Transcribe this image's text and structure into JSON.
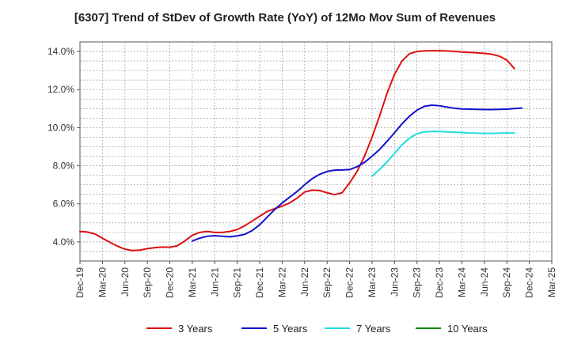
{
  "chart_data": {
    "type": "line",
    "title": "[6307]  Trend of StDev of Growth Rate (YoY) of 12Mo Mov Sum of Revenues",
    "xlabel": "",
    "ylabel": "",
    "ylim": [
      3.0,
      14.5
    ],
    "yticks": [
      4.0,
      6.0,
      8.0,
      10.0,
      12.0,
      14.0
    ],
    "ytick_labels": [
      "4.0%",
      "6.0%",
      "8.0%",
      "10.0%",
      "12.0%",
      "14.0%"
    ],
    "x_start": "2019-12",
    "x_tick_labels": [
      "Dec-19",
      "Mar-20",
      "Jun-20",
      "Sep-20",
      "Dec-20",
      "Mar-21",
      "Jun-21",
      "Sep-21",
      "Dec-21",
      "Mar-22",
      "Jun-22",
      "Sep-22",
      "Dec-22",
      "Mar-23",
      "Jun-23",
      "Sep-23",
      "Dec-23",
      "Mar-24",
      "Jun-24",
      "Sep-24",
      "Dec-24",
      "Mar-25"
    ],
    "grid": true,
    "legend_position": "bottom",
    "series": [
      {
        "name": "3 Years",
        "color": "#dd1111",
        "start_index": 0,
        "values": [
          4.55,
          4.52,
          4.42,
          4.2,
          3.98,
          3.78,
          3.62,
          3.55,
          3.57,
          3.65,
          3.7,
          3.73,
          3.72,
          3.8,
          4.05,
          4.35,
          4.5,
          4.55,
          4.5,
          4.5,
          4.55,
          4.65,
          4.85,
          5.1,
          5.35,
          5.6,
          5.75,
          5.88,
          6.05,
          6.3,
          6.62,
          6.72,
          6.7,
          6.58,
          6.48,
          6.58,
          7.1,
          7.7,
          8.5,
          9.5,
          10.6,
          11.8,
          12.8,
          13.5,
          13.88,
          14.0,
          14.03,
          14.04,
          14.04,
          14.03,
          14.0,
          13.97,
          13.95,
          13.93,
          13.9,
          13.85,
          13.75,
          13.55,
          13.1
        ]
      },
      {
        "name": "5 Years",
        "color": "#1111cc",
        "start_index": 15,
        "values": [
          4.05,
          4.2,
          4.3,
          4.33,
          4.3,
          4.27,
          4.32,
          4.4,
          4.6,
          4.9,
          5.3,
          5.7,
          6.05,
          6.35,
          6.65,
          7.0,
          7.32,
          7.55,
          7.7,
          7.77,
          7.78,
          7.8,
          7.95,
          8.18,
          8.5,
          8.85,
          9.28,
          9.73,
          10.2,
          10.6,
          10.92,
          11.12,
          11.18,
          11.15,
          11.08,
          11.02,
          10.98,
          10.97,
          10.96,
          10.95,
          10.95,
          10.96,
          10.97,
          11.0,
          11.03
        ]
      },
      {
        "name": "7 Years",
        "color": "#22dddd",
        "start_index": 39,
        "values": [
          7.45,
          7.8,
          8.2,
          8.65,
          9.1,
          9.45,
          9.68,
          9.78,
          9.8,
          9.8,
          9.78,
          9.76,
          9.74,
          9.72,
          9.71,
          9.7,
          9.7,
          9.71,
          9.72,
          9.72
        ]
      },
      {
        "name": "10 Years",
        "color": "#118811",
        "start_index": 0,
        "values": []
      }
    ]
  }
}
